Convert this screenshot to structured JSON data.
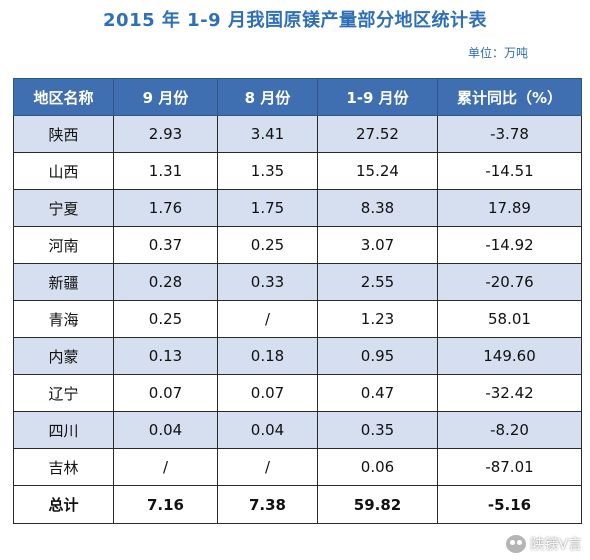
{
  "title": "2015 年 1-9 月我国原镁产量部分地区统计表",
  "unit": "单位：万吨",
  "columns": [
    "地区名称",
    "9 月份",
    "8 月份",
    "1-9 月份",
    "累计同比（%）"
  ],
  "rows": [
    {
      "region": "陕西",
      "sep": "2.93",
      "aug": "3.41",
      "ytd": "27.52",
      "yoy": "-3.78"
    },
    {
      "region": "山西",
      "sep": "1.31",
      "aug": "1.35",
      "ytd": "15.24",
      "yoy": "-14.51"
    },
    {
      "region": "宁夏",
      "sep": "1.76",
      "aug": "1.75",
      "ytd": "8.38",
      "yoy": "17.89"
    },
    {
      "region": "河南",
      "sep": "0.37",
      "aug": "0.25",
      "ytd": "3.07",
      "yoy": "-14.92"
    },
    {
      "region": "新疆",
      "sep": "0.28",
      "aug": "0.33",
      "ytd": "2.55",
      "yoy": "-20.76"
    },
    {
      "region": "青海",
      "sep": "0.25",
      "aug": "/",
      "ytd": "1.23",
      "yoy": "58.01"
    },
    {
      "region": "内蒙",
      "sep": "0.13",
      "aug": "0.18",
      "ytd": "0.95",
      "yoy": "149.60"
    },
    {
      "region": "辽宁",
      "sep": "0.07",
      "aug": "0.07",
      "ytd": "0.47",
      "yoy": "-32.42"
    },
    {
      "region": "四川",
      "sep": "0.04",
      "aug": "0.04",
      "ytd": "0.35",
      "yoy": "-8.20"
    },
    {
      "region": "吉林",
      "sep": "/",
      "aug": "/",
      "ytd": "0.06",
      "yoy": "-87.01"
    }
  ],
  "total": {
    "region": "总计",
    "sep": "7.16",
    "aug": "7.38",
    "ytd": "59.82",
    "yoy": "-5.16"
  },
  "watermark": {
    "text": "陕镁V言",
    "icon": "wechat-icon"
  }
}
